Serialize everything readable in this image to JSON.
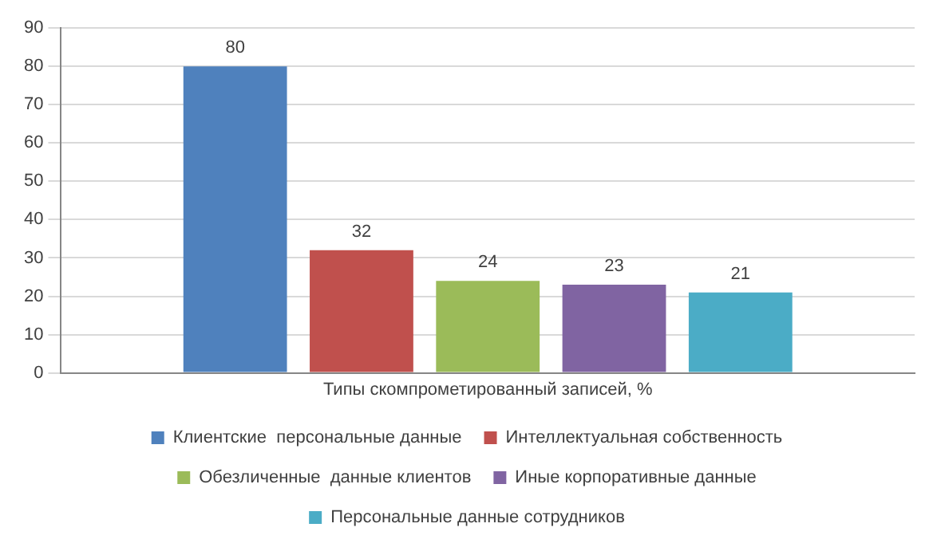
{
  "chart_data": {
    "type": "bar",
    "xlabel": "Типы скомпрометированный записей, %",
    "categories": [
      null
    ],
    "series": [
      {
        "name": "Клиентские  персональные данные",
        "color": "#4f81bd",
        "values": [
          80
        ]
      },
      {
        "name": "Интеллектуальная собственность",
        "color": "#c0504d",
        "values": [
          32
        ]
      },
      {
        "name": "Обезличенные  данные клиентов",
        "color": "#9bbb59",
        "values": [
          24
        ]
      },
      {
        "name": "Иные корпоративные данные",
        "color": "#8064a2",
        "values": [
          23
        ]
      },
      {
        "name": "Персональные данные сотрудников",
        "color": "#4bacc6",
        "values": [
          21
        ]
      }
    ],
    "ylim": [
      0,
      90
    ],
    "yticks": [
      0,
      10,
      20,
      30,
      40,
      50,
      60,
      70,
      80,
      90
    ],
    "grid": "y",
    "legend": "bottom",
    "data_labels": true,
    "tick_labels": "y"
  }
}
